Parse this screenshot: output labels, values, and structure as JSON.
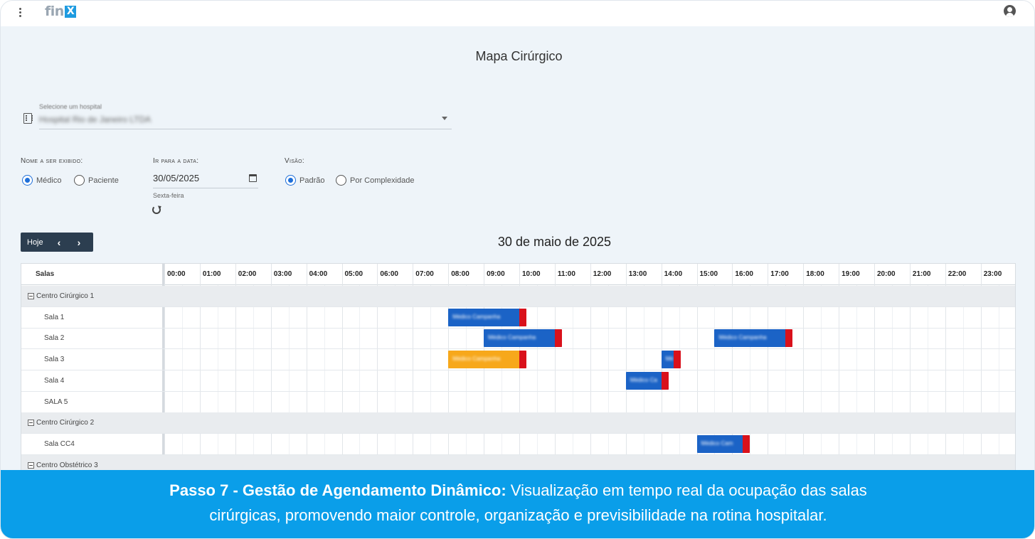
{
  "header": {
    "logo_text": "fin",
    "logo_badge": "X"
  },
  "page": {
    "title": "Mapa Cirúrgico"
  },
  "hospital_select": {
    "label": "Selecione um hospital",
    "value": "Hospital Rio de Janeiro LTDA"
  },
  "display_name": {
    "label": "Nome a ser exibido:",
    "options": [
      {
        "label": "Médico",
        "selected": true
      },
      {
        "label": "Paciente",
        "selected": false
      }
    ]
  },
  "go_to_date": {
    "label": "Ir para a data:",
    "value": "30/05/2025",
    "weekday": "Sexta-feira"
  },
  "view": {
    "label": "Visão:",
    "options": [
      {
        "label": "Padrão",
        "selected": true
      },
      {
        "label": "Por Complexidade",
        "selected": false
      }
    ]
  },
  "calendar_nav": {
    "today": "Hoje",
    "prev": "‹",
    "next": "›",
    "title": "30 de maio de 2025"
  },
  "schedule": {
    "rooms_header": "Salas",
    "hours": [
      "00:00",
      "01:00",
      "02:00",
      "03:00",
      "04:00",
      "05:00",
      "06:00",
      "07:00",
      "08:00",
      "09:00",
      "10:00",
      "11:00",
      "12:00",
      "13:00",
      "14:00",
      "15:00",
      "16:00",
      "17:00",
      "18:00",
      "19:00",
      "20:00",
      "21:00",
      "22:00",
      "23:00"
    ],
    "rows": [
      {
        "type": "group",
        "label": "Centro Cirúrgico 1"
      },
      {
        "type": "room",
        "label": "Sala 1"
      },
      {
        "type": "room",
        "label": "Sala 2"
      },
      {
        "type": "room",
        "label": "Sala 3"
      },
      {
        "type": "room",
        "label": "Sala 4"
      },
      {
        "type": "room",
        "label": "SALA 5"
      },
      {
        "type": "group",
        "label": "Centro Cirúrgico 2"
      },
      {
        "type": "room",
        "label": "Sala CC4"
      },
      {
        "type": "group",
        "label": "Centro Obstétrico 3"
      }
    ],
    "events": [
      {
        "row": 1,
        "start": 8.0,
        "end": 10.2,
        "color": "#1b63c6",
        "text": "Médico Campanha"
      },
      {
        "row": 2,
        "start": 9.0,
        "end": 11.2,
        "color": "#1b63c6",
        "text": "Médico Campanha"
      },
      {
        "row": 2,
        "start": 15.5,
        "end": 17.7,
        "color": "#1b63c6",
        "text": "Médico Campanha"
      },
      {
        "row": 3,
        "start": 8.0,
        "end": 10.2,
        "color": "#f7a81b",
        "text": "Médico Campanha"
      },
      {
        "row": 3,
        "start": 14.0,
        "end": 14.55,
        "color": "#1b63c6",
        "text": "Mé"
      },
      {
        "row": 4,
        "start": 13.0,
        "end": 14.2,
        "color": "#1b63c6",
        "text": "Médico Ca"
      },
      {
        "row": 7,
        "start": 15.0,
        "end": 16.5,
        "color": "#1b63c6",
        "text": "Médico Cam"
      }
    ],
    "alert_color": "#d9111b"
  },
  "banner": {
    "bold": "Passo 7 - Gestão de Agendamento Dinâmico:",
    "text_line1": " Visualização em tempo real da ocupação das salas",
    "text_line2": "cirúrgicas, promovendo maior controle, organização e previsibilidade na rotina hospitalar."
  },
  "colors": {
    "banner": "#0a9ee9",
    "nav_dark": "#2c3e50",
    "radio_selected": "#1e6fd9"
  }
}
